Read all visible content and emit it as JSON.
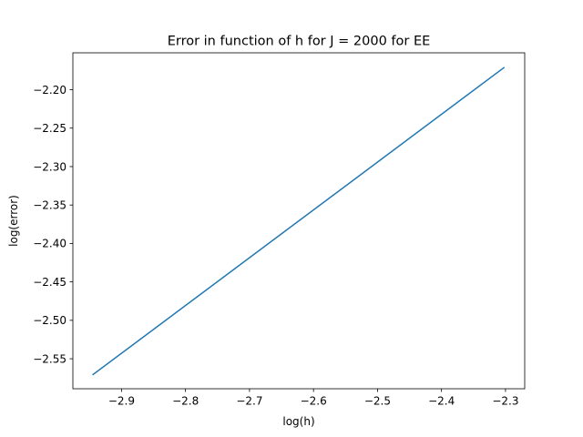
{
  "chart_data": {
    "type": "line",
    "title": "Error in function of h for J = 2000 for EE",
    "xlabel": "log(h)",
    "ylabel": "log(error)",
    "xlim": [
      -2.976,
      -2.27
    ],
    "ylim": [
      -2.589,
      -2.152
    ],
    "xticks": [
      -2.9,
      -2.8,
      -2.7,
      -2.6,
      -2.5,
      -2.4,
      -2.3
    ],
    "xtick_labels": [
      "−2.9",
      "−2.8",
      "−2.7",
      "−2.6",
      "−2.5",
      "−2.4",
      "−2.3"
    ],
    "yticks": [
      -2.55,
      -2.5,
      -2.45,
      -2.4,
      -2.35,
      -2.3,
      -2.25,
      -2.2
    ],
    "ytick_labels": [
      "−2.55",
      "−2.50",
      "−2.45",
      "−2.40",
      "−2.35",
      "−2.30",
      "−2.25",
      "−2.20"
    ],
    "grid": false,
    "series": [
      {
        "color": "#1f77b4",
        "x": [
          -2.9444,
          -2.3026
        ],
        "y": [
          -2.5705,
          -2.1714
        ]
      }
    ]
  }
}
